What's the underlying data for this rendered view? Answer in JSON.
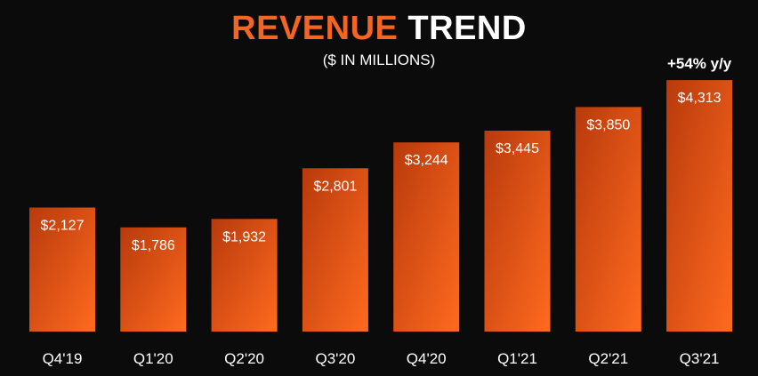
{
  "title": {
    "accent": "REVENUE",
    "main": " TREND"
  },
  "subtitle": "($ IN MILLIONS)",
  "colors": {
    "background": "#0b0b0b",
    "bar_light": "#ff6a1f",
    "bar_dark": "#b83a0c",
    "accent": "#f26522",
    "text": "#ffffff"
  },
  "chart_data": {
    "type": "bar",
    "title": "REVENUE TREND",
    "subtitle": "($ IN MILLIONS)",
    "xlabel": "",
    "ylabel": "",
    "categories": [
      "Q4'19",
      "Q1'20",
      "Q2'20",
      "Q3'20",
      "Q4'20",
      "Q1'21",
      "Q2'21",
      "Q3'21"
    ],
    "values": [
      2127,
      1786,
      1932,
      2801,
      3244,
      3445,
      3850,
      4313
    ],
    "data_labels": [
      "$2,127",
      "$1,786",
      "$1,932",
      "$2,801",
      "$3,244",
      "$3,445",
      "$3,850",
      "$4,313"
    ],
    "annotations": [
      {
        "category": "Q3'21",
        "text": "+54% y/y"
      }
    ],
    "ylim": [
      0,
      4500
    ],
    "grid": false,
    "legend": "none"
  }
}
